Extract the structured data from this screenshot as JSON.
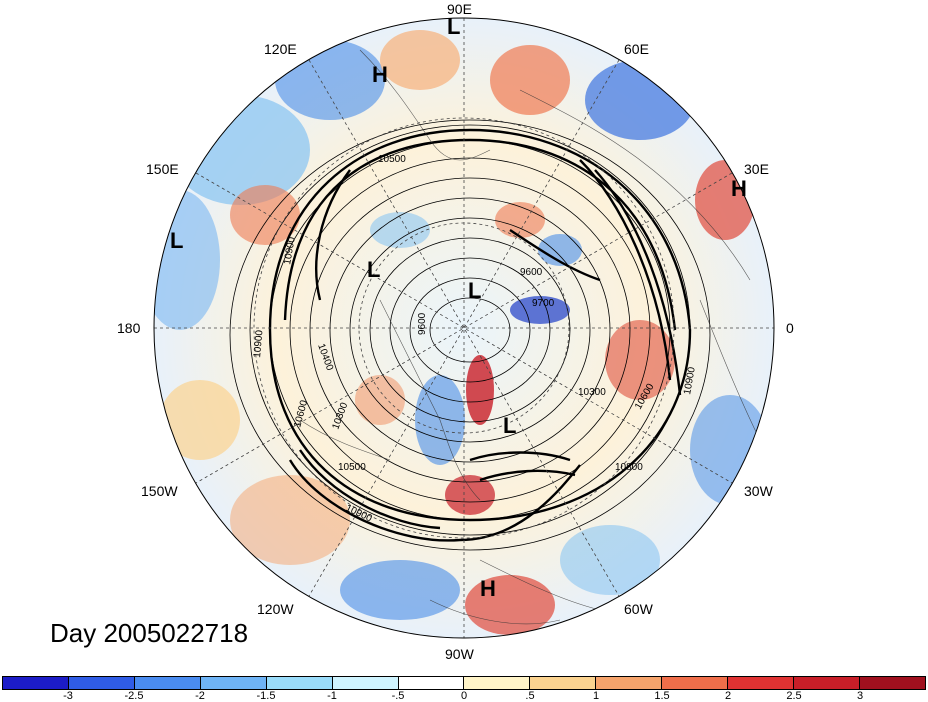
{
  "title": "Day 2005022718",
  "longitude_labels": {
    "top": "90E",
    "top_left": "120E",
    "top_right": "60E",
    "upper_left": "150E",
    "upper_right": "30E",
    "left": "180",
    "right": "0",
    "lower_left": "150W",
    "lower_right": "30W",
    "bottom_left": "120W",
    "bottom_right": "60W",
    "bottom": "90W"
  },
  "pressure_centers": [
    "L",
    "H",
    "H",
    "L",
    "L",
    "L",
    "H"
  ],
  "contour_labels": [
    "10500",
    "10900",
    "9600",
    "9700",
    "10300",
    "10600",
    "10900",
    "10800",
    "10400",
    "9600",
    "10900",
    "10600",
    "10300",
    "10500",
    "10900"
  ],
  "colorbar": {
    "labels": [
      "-3",
      "-2.5",
      "-2",
      "-1.5",
      "-1",
      "-.5",
      "0",
      ".5",
      "1",
      "1.5",
      "2",
      "2.5",
      "3"
    ],
    "colors": [
      "#1c1cc8",
      "#2f5ce6",
      "#4a8cf0",
      "#6fb4f6",
      "#9adcfa",
      "#cff4ff",
      "#ffffff",
      "#fff4c8",
      "#fbd390",
      "#f6a46c",
      "#ef6e4a",
      "#e03232",
      "#c81e28",
      "#a0101e"
    ]
  }
}
